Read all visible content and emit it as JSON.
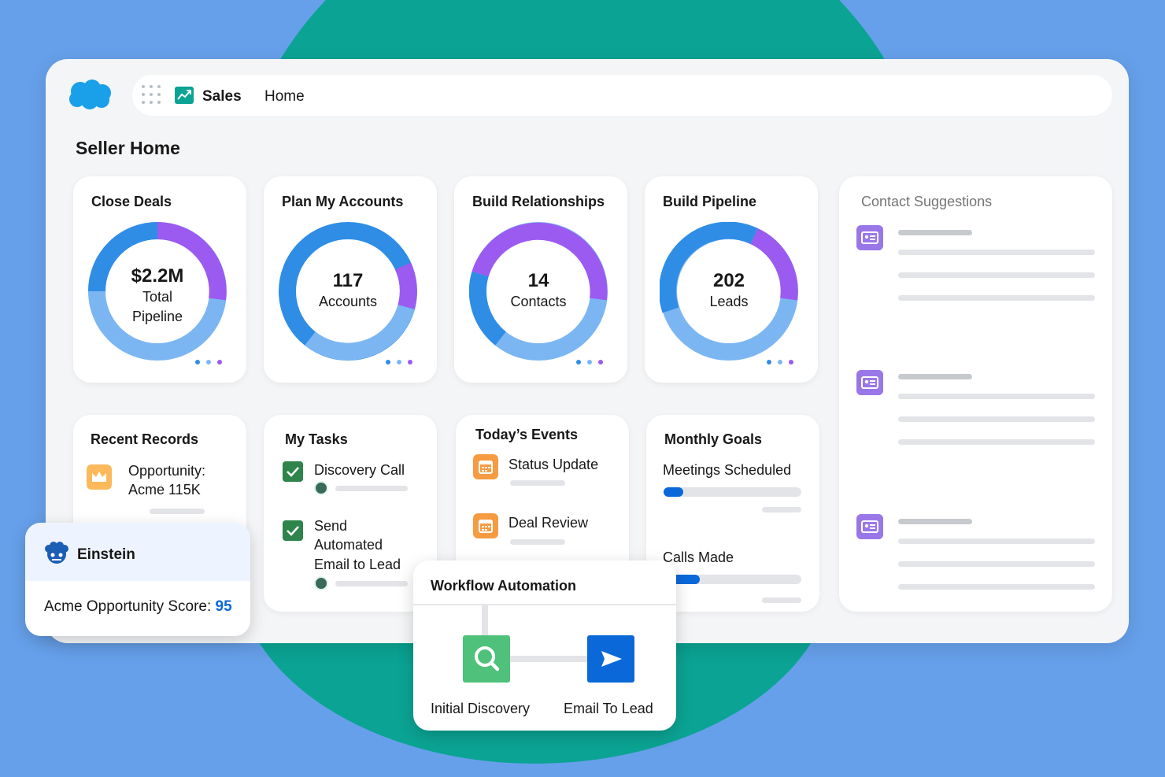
{
  "nav": {
    "app_name": "Sales",
    "home_tab": "Home"
  },
  "page_title": "Seller Home",
  "kpi_cards": [
    {
      "title": "Close Deals",
      "value": "$2.2M",
      "label_line1": "Total",
      "label_line2": "Pipeline"
    },
    {
      "title": "Plan My Accounts",
      "value": "117",
      "label_line1": "Accounts"
    },
    {
      "title": "Build Relationships",
      "value": "14",
      "label_line1": "Contacts"
    },
    {
      "title": "Build Pipeline",
      "value": "202",
      "label_line1": "Leads"
    }
  ],
  "contact_suggestions": {
    "title": "Contact Suggestions"
  },
  "recent_records": {
    "title": "Recent Records",
    "item_line1": "Opportunity:",
    "item_line2": "Acme 115K"
  },
  "my_tasks": {
    "title": "My Tasks",
    "task1": "Discovery Call",
    "task2_line1": "Send",
    "task2_line2": "Automated",
    "task2_line3": "Email to Lead"
  },
  "todays_events": {
    "title": "Today’s Events",
    "event1": "Status Update",
    "event2": "Deal Review"
  },
  "monthly_goals": {
    "title": "Monthly Goals",
    "goal1": {
      "label": "Meetings Scheduled",
      "progress": 0.14
    },
    "goal2": {
      "label": "Calls Made",
      "progress": 0.26
    }
  },
  "einstein": {
    "title": "Einstein",
    "score_label": "Acme Opportunity Score:",
    "score_value": "95"
  },
  "workflow": {
    "title": "Workflow Automation",
    "step1": "Initial Discovery",
    "step2": "Email To Lead"
  },
  "colors": {
    "background": "#66a0ea",
    "teal": "#0ba393",
    "donut_blue": "#2f8de5",
    "donut_light_blue": "#7cb6f2",
    "donut_purple": "#9b5bf0",
    "check_green": "#2e844a",
    "event_orange": "#f59b42",
    "accent_blue": "#0b68d8",
    "discovery_green": "#4fc17a"
  },
  "icons": {
    "logo": "salesforce-cloud-icon",
    "launcher": "app-launcher-icon",
    "app": "sales-chart-icon",
    "contact": "contact-card-icon",
    "record": "crown-icon",
    "task": "checkbox-checked-icon",
    "event": "calendar-icon",
    "einstein": "einstein-icon",
    "discovery": "search-icon",
    "email": "send-icon"
  }
}
